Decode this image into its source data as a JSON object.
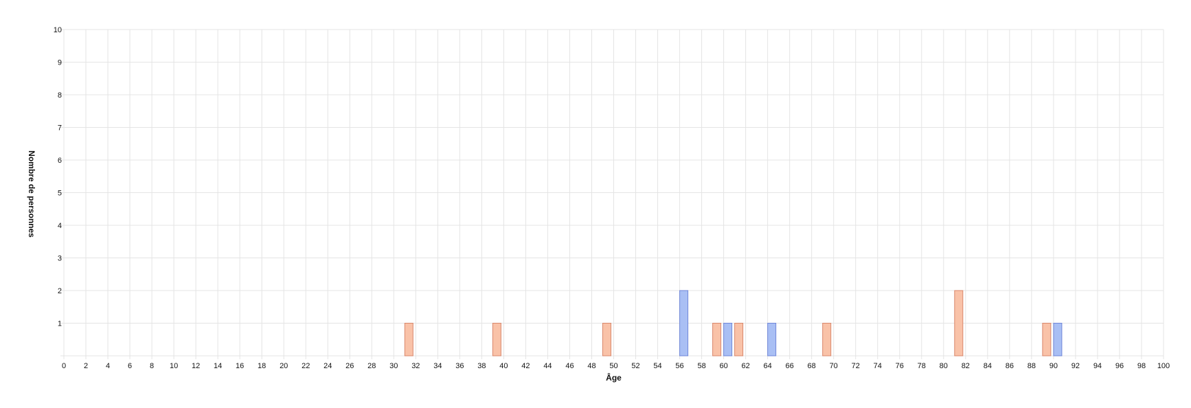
{
  "chart_data": {
    "type": "bar",
    "title": "",
    "xlabel": "Âge",
    "ylabel": "Nombre de personnes",
    "xlim": [
      0,
      100
    ],
    "ylim": [
      0,
      10
    ],
    "x_tick_step": 2,
    "y_tick_step": 1,
    "grid": true,
    "legend": false,
    "series": [
      {
        "color": "#f9c2a8",
        "stroke": "#d9866a",
        "points": [
          {
            "x": 31,
            "y": 1
          },
          {
            "x": 39,
            "y": 1
          },
          {
            "x": 49,
            "y": 1
          },
          {
            "x": 59,
            "y": 1
          },
          {
            "x": 61,
            "y": 1
          },
          {
            "x": 69,
            "y": 1
          },
          {
            "x": 81,
            "y": 2
          },
          {
            "x": 89,
            "y": 1
          }
        ]
      },
      {
        "color": "#a9bff4",
        "stroke": "#6f86d8",
        "points": [
          {
            "x": 56,
            "y": 2
          },
          {
            "x": 60,
            "y": 1
          },
          {
            "x": 64,
            "y": 1
          },
          {
            "x": 90,
            "y": 1
          }
        ]
      }
    ]
  }
}
